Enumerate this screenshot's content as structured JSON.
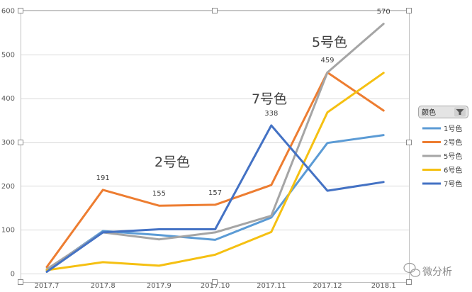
{
  "chart_data": {
    "type": "line",
    "title": "",
    "xlabel": "",
    "ylabel": "",
    "categories": [
      "2017.7",
      "2017.8",
      "2017.9",
      "2017.10",
      "2017.11",
      "2017.12",
      "2018.1"
    ],
    "ylim": [
      0,
      600
    ],
    "yticks": [
      0,
      100,
      200,
      300,
      400,
      500,
      600
    ],
    "grid": true,
    "series": [
      {
        "name": "1号色",
        "color": "#5b9bd5",
        "values": [
          8,
          97,
          88,
          77,
          128,
          298,
          316
        ]
      },
      {
        "name": "2号色",
        "color": "#ed7d31",
        "values": [
          15,
          191,
          155,
          157,
          202,
          459,
          372
        ]
      },
      {
        "name": "5号色",
        "color": "#a5a5a5",
        "values": [
          10,
          94,
          78,
          94,
          132,
          459,
          570
        ]
      },
      {
        "name": "6号色",
        "color": "#f5c012",
        "values": [
          8,
          26,
          18,
          43,
          95,
          368,
          458
        ]
      },
      {
        "name": "7号色",
        "color": "#4472c4",
        "values": [
          4,
          94,
          101,
          101,
          338,
          189,
          209
        ]
      }
    ],
    "data_labels": [
      {
        "series": "2号色",
        "category": "2017.8",
        "text": "191"
      },
      {
        "series": "2号色",
        "category": "2017.9",
        "text": "155"
      },
      {
        "series": "2号色",
        "category": "2017.10",
        "text": "157"
      },
      {
        "series": "7号色",
        "category": "2017.11",
        "text": "338"
      },
      {
        "series": "2号色",
        "category": "2017.12",
        "text": "459"
      },
      {
        "series": "5号色",
        "category": "2018.1",
        "text": "570"
      }
    ],
    "annotations": [
      "2号色",
      "7号色",
      "5号色"
    ],
    "legend": {
      "title": "颜色",
      "placement": "right"
    }
  },
  "watermark": {
    "text": "微分析"
  }
}
